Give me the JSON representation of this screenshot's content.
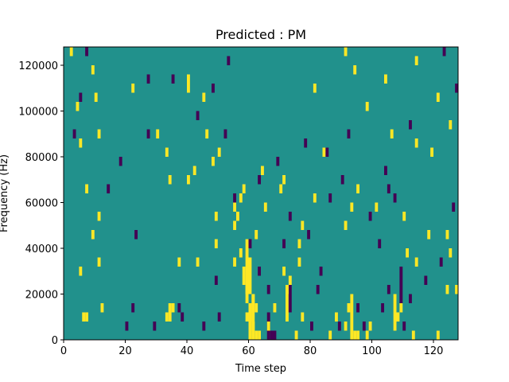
{
  "chart_data": {
    "type": "heatmap",
    "title": "Predicted : PM",
    "xlabel": "Time step",
    "ylabel": "Frequency (Hz)",
    "xlim": [
      0,
      128
    ],
    "ylim": [
      0,
      128000
    ],
    "xticks": [
      0,
      20,
      40,
      60,
      80,
      100,
      120
    ],
    "yticks": [
      0,
      20000,
      40000,
      60000,
      80000,
      100000,
      120000
    ],
    "xtick_labels": [
      "0",
      "20",
      "40",
      "60",
      "80",
      "100",
      "120"
    ],
    "ytick_labels": [
      "0",
      "20000",
      "40000",
      "60000",
      "80000",
      "100000",
      "120000"
    ],
    "grid": false,
    "colors": {
      "background": "#21918c",
      "positive": "#fde725",
      "negative": "#440154"
    },
    "cell_height_hz": 4000,
    "value_levels": [
      -1,
      0,
      1
    ],
    "cells": [
      {
        "t": 6,
        "f": 8000,
        "v": 1
      },
      {
        "t": 7,
        "f": 8000,
        "v": 1
      },
      {
        "t": 34,
        "f": 12000,
        "v": 1
      },
      {
        "t": 35,
        "f": 12000,
        "v": 1
      },
      {
        "t": 33,
        "f": 8000,
        "v": 1
      },
      {
        "t": 34,
        "f": 8000,
        "v": 1
      },
      {
        "t": 59,
        "f": 8000,
        "v": 1
      },
      {
        "t": 60,
        "f": 8000,
        "v": 1
      },
      {
        "t": 61,
        "f": 4000,
        "v": 1
      },
      {
        "t": 62,
        "f": 0,
        "v": 1
      },
      {
        "t": 63,
        "f": 0,
        "v": 1
      },
      {
        "t": 60,
        "f": 12000,
        "v": 1
      },
      {
        "t": 59,
        "f": 20000,
        "v": 1
      },
      {
        "t": 58,
        "f": 24000,
        "v": 1
      },
      {
        "t": 58,
        "f": 28000,
        "v": 1
      },
      {
        "t": 59,
        "f": 40000,
        "v": 1
      },
      {
        "t": 61,
        "f": 16000,
        "v": 1
      },
      {
        "t": 62,
        "f": 12000,
        "v": 1
      },
      {
        "t": 57,
        "f": 60000,
        "v": 1
      },
      {
        "t": 58,
        "f": 64000,
        "v": 1
      },
      {
        "t": 55,
        "f": 56000,
        "v": 1
      },
      {
        "t": 66,
        "f": 4000,
        "v": 1
      },
      {
        "t": 68,
        "f": 12000,
        "v": 1
      },
      {
        "t": 71,
        "f": 28000,
        "v": 1
      },
      {
        "t": 72,
        "f": 20000,
        "v": 1
      },
      {
        "t": 73,
        "f": 24000,
        "v": 1
      },
      {
        "t": 75,
        "f": 0,
        "v": 1
      },
      {
        "t": 77,
        "f": 8000,
        "v": 1
      },
      {
        "t": 86,
        "f": 0,
        "v": 1
      },
      {
        "t": 88,
        "f": 8000,
        "v": 1
      },
      {
        "t": 91,
        "f": 4000,
        "v": 1
      },
      {
        "t": 92,
        "f": 12000,
        "v": 1
      },
      {
        "t": 94,
        "f": 0,
        "v": 1
      },
      {
        "t": 95,
        "f": 0,
        "v": 1
      },
      {
        "t": 98,
        "f": 0,
        "v": 1
      },
      {
        "t": 99,
        "f": 4000,
        "v": 1
      },
      {
        "t": 108,
        "f": 8000,
        "v": 1
      },
      {
        "t": 109,
        "f": 12000,
        "v": 1
      },
      {
        "t": 113,
        "f": 0,
        "v": 1
      },
      {
        "t": 121,
        "f": 0,
        "v": 1
      },
      {
        "t": 125,
        "f": 36000,
        "v": 1
      },
      {
        "t": 124,
        "f": 20000,
        "v": 1
      },
      {
        "t": 127,
        "f": 20000,
        "v": 1
      },
      {
        "t": 2,
        "f": 124000,
        "v": 1
      },
      {
        "t": 9,
        "f": 116000,
        "v": 1
      },
      {
        "t": 10,
        "f": 104000,
        "v": 1
      },
      {
        "t": 4,
        "f": 100000,
        "v": 1
      },
      {
        "t": 11,
        "f": 88000,
        "v": 1
      },
      {
        "t": 5,
        "f": 84000,
        "v": 1
      },
      {
        "t": 7,
        "f": 64000,
        "v": 1
      },
      {
        "t": 11,
        "f": 52000,
        "v": 1
      },
      {
        "t": 9,
        "f": 44000,
        "v": 1
      },
      {
        "t": 11,
        "f": 32000,
        "v": 1
      },
      {
        "t": 5,
        "f": 28000,
        "v": 1
      },
      {
        "t": 12,
        "f": 12000,
        "v": 1
      },
      {
        "t": 22,
        "f": 108000,
        "v": 1
      },
      {
        "t": 30,
        "f": 88000,
        "v": 1
      },
      {
        "t": 33,
        "f": 80000,
        "v": 1
      },
      {
        "t": 34,
        "f": 68000,
        "v": 1
      },
      {
        "t": 40,
        "f": 108000,
        "v": 1
      },
      {
        "t": 40,
        "f": 112000,
        "v": 1
      },
      {
        "t": 45,
        "f": 104000,
        "v": 1
      },
      {
        "t": 46,
        "f": 88000,
        "v": 1
      },
      {
        "t": 48,
        "f": 76000,
        "v": 1
      },
      {
        "t": 42,
        "f": 72000,
        "v": 1
      },
      {
        "t": 49,
        "f": 52000,
        "v": 1
      },
      {
        "t": 49,
        "f": 40000,
        "v": 1
      },
      {
        "t": 43,
        "f": 32000,
        "v": 1
      },
      {
        "t": 37,
        "f": 32000,
        "v": 1
      },
      {
        "t": 40,
        "f": 68000,
        "v": 1
      },
      {
        "t": 50,
        "f": 80000,
        "v": 1
      },
      {
        "t": 55,
        "f": 48000,
        "v": 1
      },
      {
        "t": 56,
        "f": 52000,
        "v": 1
      },
      {
        "t": 55,
        "f": 32000,
        "v": 1
      },
      {
        "t": 57,
        "f": 36000,
        "v": 1
      },
      {
        "t": 62,
        "f": 44000,
        "v": 1
      },
      {
        "t": 64,
        "f": 72000,
        "v": 1
      },
      {
        "t": 65,
        "f": 56000,
        "v": 1
      },
      {
        "t": 70,
        "f": 64000,
        "v": 1
      },
      {
        "t": 71,
        "f": 68000,
        "v": 1
      },
      {
        "t": 76,
        "f": 40000,
        "v": 1
      },
      {
        "t": 77,
        "f": 48000,
        "v": 1
      },
      {
        "t": 76,
        "f": 32000,
        "v": 1
      },
      {
        "t": 81,
        "f": 60000,
        "v": 1
      },
      {
        "t": 84,
        "f": 80000,
        "v": 1
      },
      {
        "t": 81,
        "f": 108000,
        "v": 1
      },
      {
        "t": 91,
        "f": 124000,
        "v": 1
      },
      {
        "t": 94,
        "f": 116000,
        "v": 1
      },
      {
        "t": 98,
        "f": 100000,
        "v": 1
      },
      {
        "t": 104,
        "f": 112000,
        "v": 1
      },
      {
        "t": 106,
        "f": 88000,
        "v": 1
      },
      {
        "t": 114,
        "f": 84000,
        "v": 1
      },
      {
        "t": 114,
        "f": 120000,
        "v": 1
      },
      {
        "t": 119,
        "f": 80000,
        "v": 1
      },
      {
        "t": 121,
        "f": 104000,
        "v": 1
      },
      {
        "t": 125,
        "f": 92000,
        "v": 1
      },
      {
        "t": 91,
        "f": 48000,
        "v": 1
      },
      {
        "t": 93,
        "f": 56000,
        "v": 1
      },
      {
        "t": 95,
        "f": 64000,
        "v": 1
      },
      {
        "t": 101,
        "f": 56000,
        "v": 1
      },
      {
        "t": 110,
        "f": 52000,
        "v": 1
      },
      {
        "t": 111,
        "f": 36000,
        "v": 1
      },
      {
        "t": 114,
        "f": 32000,
        "v": 1
      },
      {
        "t": 118,
        "f": 44000,
        "v": 1
      },
      {
        "t": 124,
        "f": 44000,
        "v": 1
      },
      {
        "t": 14,
        "f": 64000,
        "v": -1
      },
      {
        "t": 23,
        "f": 44000,
        "v": -1
      },
      {
        "t": 20,
        "f": 4000,
        "v": -1
      },
      {
        "t": 22,
        "f": 12000,
        "v": -1
      },
      {
        "t": 29,
        "f": 4000,
        "v": -1
      },
      {
        "t": 37,
        "f": 12000,
        "v": -1
      },
      {
        "t": 38,
        "f": 8000,
        "v": -1
      },
      {
        "t": 45,
        "f": 4000,
        "v": -1
      },
      {
        "t": 50,
        "f": 8000,
        "v": -1
      },
      {
        "t": 67,
        "f": 0,
        "v": -1
      },
      {
        "t": 68,
        "f": 0,
        "v": -1
      },
      {
        "t": 66,
        "f": 20000,
        "v": -1
      },
      {
        "t": 71,
        "f": 40000,
        "v": -1
      },
      {
        "t": 80,
        "f": 4000,
        "v": -1
      },
      {
        "t": 82,
        "f": 20000,
        "v": -1
      },
      {
        "t": 83,
        "f": 28000,
        "v": -1
      },
      {
        "t": 89,
        "f": 4000,
        "v": -1
      },
      {
        "t": 95,
        "f": 12000,
        "v": -1
      },
      {
        "t": 97,
        "f": 4000,
        "v": -1
      },
      {
        "t": 103,
        "f": 12000,
        "v": -1
      },
      {
        "t": 105,
        "f": 20000,
        "v": -1
      },
      {
        "t": 110,
        "f": 4000,
        "v": -1
      },
      {
        "t": 112,
        "f": 16000,
        "v": -1
      },
      {
        "t": 127,
        "f": 108000,
        "v": -1
      },
      {
        "t": 123,
        "f": 124000,
        "v": -1
      },
      {
        "t": 112,
        "f": 92000,
        "v": -1
      },
      {
        "t": 104,
        "f": 72000,
        "v": -1
      },
      {
        "t": 102,
        "f": 40000,
        "v": -1
      },
      {
        "t": 105,
        "f": 64000,
        "v": -1
      },
      {
        "t": 92,
        "f": 88000,
        "v": -1
      },
      {
        "t": 85,
        "f": 80000,
        "v": -1
      },
      {
        "t": 86,
        "f": 60000,
        "v": -1
      },
      {
        "t": 78,
        "f": 84000,
        "v": -1
      },
      {
        "t": 69,
        "f": 76000,
        "v": -1
      },
      {
        "t": 63,
        "f": 68000,
        "v": -1
      },
      {
        "t": 53,
        "f": 120000,
        "v": -1
      },
      {
        "t": 48,
        "f": 108000,
        "v": -1
      },
      {
        "t": 43,
        "f": 96000,
        "v": -1
      },
      {
        "t": 27,
        "f": 88000,
        "v": -1
      },
      {
        "t": 18,
        "f": 76000,
        "v": -1
      },
      {
        "t": 5,
        "f": 104000,
        "v": -1
      },
      {
        "t": 3,
        "f": 88000,
        "v": -1
      },
      {
        "t": 7,
        "f": 124000,
        "v": -1
      },
      {
        "t": 35,
        "f": 112000,
        "v": -1
      },
      {
        "t": 27,
        "f": 112000,
        "v": -1
      },
      {
        "t": 52,
        "f": 88000,
        "v": -1
      },
      {
        "t": 60,
        "f": 40000,
        "v": -1
      },
      {
        "t": 55,
        "f": 60000,
        "v": -1
      },
      {
        "t": 49,
        "f": 24000,
        "v": -1
      },
      {
        "t": 63,
        "f": 28000,
        "v": -1
      },
      {
        "t": 73,
        "f": 52000,
        "v": -1
      },
      {
        "t": 79,
        "f": 44000,
        "v": -1
      },
      {
        "t": 90,
        "f": 68000,
        "v": -1
      },
      {
        "t": 99,
        "f": 52000,
        "v": -1
      },
      {
        "t": 107,
        "f": 60000,
        "v": -1
      },
      {
        "t": 117,
        "f": 24000,
        "v": -1
      },
      {
        "t": 122,
        "f": 32000,
        "v": -1
      },
      {
        "t": 126,
        "f": 56000,
        "v": -1
      }
    ],
    "column_runs": [
      {
        "t": 60,
        "f0": 0,
        "f1": 12000,
        "v": 1
      },
      {
        "t": 61,
        "f0": 0,
        "f1": 16000,
        "v": 1
      },
      {
        "t": 59,
        "f0": 16000,
        "f1": 36000,
        "v": 1
      },
      {
        "t": 60,
        "f0": 20000,
        "f1": 32000,
        "v": 1
      },
      {
        "t": 93,
        "f0": 0,
        "f1": 16000,
        "v": 1
      },
      {
        "t": 107,
        "f0": 4000,
        "f1": 16000,
        "v": 1
      },
      {
        "t": 72,
        "f0": 8000,
        "f1": 20000,
        "v": 1
      },
      {
        "t": 66,
        "f0": 0,
        "f1": 8000,
        "v": -1
      },
      {
        "t": 73,
        "f0": 12000,
        "f1": 20000,
        "v": -1
      },
      {
        "t": 109,
        "f0": 16000,
        "f1": 28000,
        "v": -1
      }
    ]
  }
}
